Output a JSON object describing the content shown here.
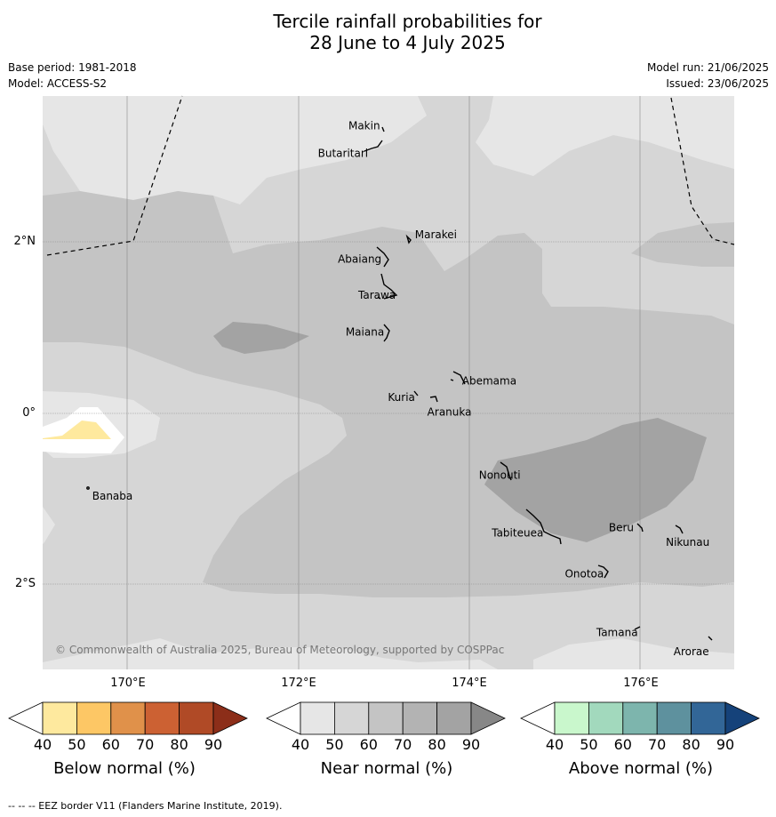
{
  "title": {
    "line1": "Tercile rainfall probabilities for",
    "line2": "28 June to 4 July 2025"
  },
  "meta": {
    "base_period": "Base period: 1981-2018",
    "model": "Model: ACCESS-S2",
    "model_run": "Model run: 21/06/2025",
    "issued": "Issued: 23/06/2025"
  },
  "map": {
    "lon_labels": [
      "170°E",
      "172°E",
      "174°E",
      "176°E"
    ],
    "lat_labels": [
      "2°N",
      "0°",
      "2°S"
    ],
    "copyright": "© Commonwealth of Australia 2025, Bureau of Meteorology, supported by COSPPac",
    "islands": [
      {
        "name": "Makin",
        "lon": 172.98,
        "lat": 3.35
      },
      {
        "name": "Butaritari",
        "lon": 172.8,
        "lat": 3.07
      },
      {
        "name": "Marakei",
        "lon": 173.3,
        "lat": 2.0
      },
      {
        "name": "Abaiang",
        "lon": 172.95,
        "lat": 1.82
      },
      {
        "name": "Tarawa",
        "lon": 172.97,
        "lat": 1.42
      },
      {
        "name": "Maiana",
        "lon": 173.02,
        "lat": 0.95
      },
      {
        "name": "Abemama",
        "lon": 173.85,
        "lat": 0.4
      },
      {
        "name": "Kuria",
        "lon": 173.4,
        "lat": 0.23
      },
      {
        "name": "Aranuka",
        "lon": 173.6,
        "lat": 0.16
      },
      {
        "name": "Banaba",
        "lon": 169.53,
        "lat": -0.86
      },
      {
        "name": "Nonouti",
        "lon": 174.4,
        "lat": -0.65
      },
      {
        "name": "Tabiteuea",
        "lon": 174.8,
        "lat": -1.35
      },
      {
        "name": "Beru",
        "lon": 175.98,
        "lat": -1.33
      },
      {
        "name": "Nikunau",
        "lon": 176.45,
        "lat": -1.36
      },
      {
        "name": "Onotoa",
        "lon": 175.55,
        "lat": -1.8
      },
      {
        "name": "Tamana",
        "lon": 175.98,
        "lat": -2.5
      },
      {
        "name": "Arorae",
        "lon": 176.82,
        "lat": -2.64
      }
    ]
  },
  "colorbars": [
    {
      "label": "Below normal (%)",
      "ticks": [
        "40",
        "50",
        "60",
        "70",
        "80",
        "90"
      ],
      "colors": [
        "#ffffff",
        "#fee99e",
        "#fdc765",
        "#e0914a",
        "#cc6133",
        "#b04a26",
        "#8c2e19"
      ]
    },
    {
      "label": "Near normal (%)",
      "ticks": [
        "40",
        "50",
        "60",
        "70",
        "80",
        "90"
      ],
      "colors": [
        "#ffffff",
        "#e6e6e6",
        "#d6d6d6",
        "#c4c4c4",
        "#b3b3b3",
        "#a3a3a3",
        "#878787"
      ]
    },
    {
      "label": "Above normal (%)",
      "ticks": [
        "40",
        "50",
        "60",
        "70",
        "80",
        "90"
      ],
      "colors": [
        "#ffffff",
        "#c9f7cc",
        "#a2d9bd",
        "#7db5ad",
        "#5e919e",
        "#326697",
        "#15427a"
      ]
    }
  ],
  "footer": "--  --  -- EEZ border V11 (Flanders Marine Institute, 2019)."
}
